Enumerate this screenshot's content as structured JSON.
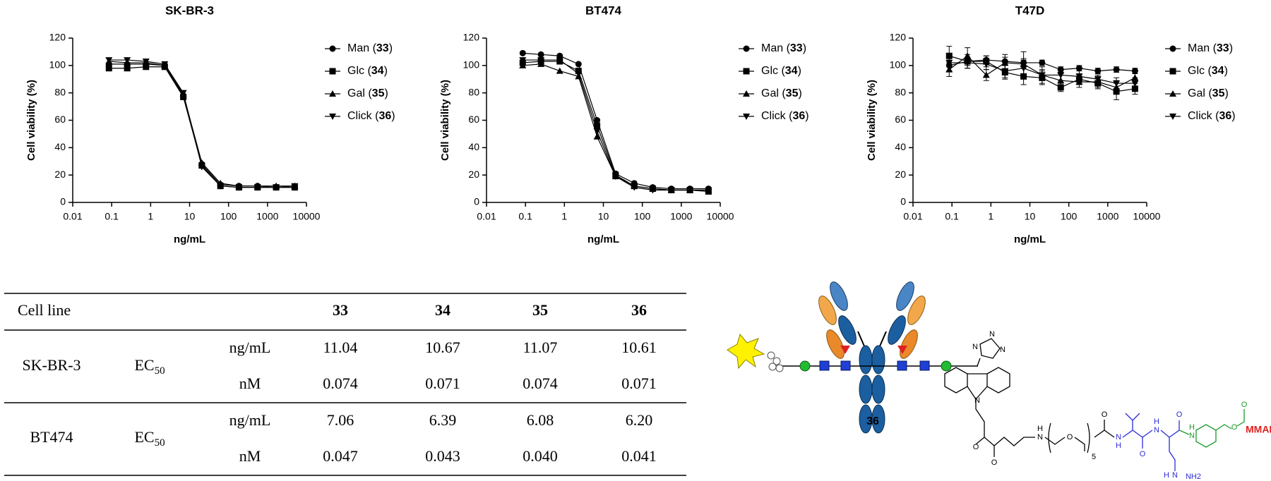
{
  "chart_data": [
    {
      "type": "line",
      "title": "SK-BR-3",
      "x_label": "ng/mL",
      "y_label": "Cell viability (%)",
      "log_x": true,
      "x": [
        0.085,
        0.25,
        0.76,
        2.3,
        6.9,
        20.6,
        62,
        185,
        556,
        1667,
        5000
      ],
      "xlim": [
        0.01,
        10000
      ],
      "xticks": [
        0.01,
        0.1,
        1,
        10,
        100,
        1000,
        10000
      ],
      "ylim": [
        0,
        120
      ],
      "yticks": [
        0,
        20,
        40,
        60,
        80,
        100,
        120
      ],
      "series": [
        {
          "name": "Man (33)",
          "color": "#000000",
          "marker": "circle",
          "values": [
            101,
            101,
            101,
            100,
            78,
            28,
            13,
            12,
            12,
            11,
            11
          ]
        },
        {
          "name": "Glc (34)",
          "color": "#000000",
          "marker": "square",
          "values": [
            98,
            98,
            99,
            99,
            77,
            27,
            12,
            11,
            11,
            11,
            11
          ]
        },
        {
          "name": "Gal (35)",
          "color": "#000000",
          "marker": "triangle",
          "values": [
            103,
            102,
            102,
            100,
            79,
            29,
            14,
            12,
            12,
            12,
            12
          ]
        },
        {
          "name": "Click (36)",
          "color": "#000000",
          "marker": "triangle-down",
          "values": [
            104,
            104,
            103,
            101,
            80,
            26,
            12,
            11,
            11,
            11,
            12
          ]
        }
      ]
    },
    {
      "type": "line",
      "title": "BT474",
      "x_label": "ng/mL",
      "y_label": "Cell viability (%)",
      "log_x": true,
      "x": [
        0.085,
        0.25,
        0.76,
        2.3,
        6.9,
        20.6,
        62,
        185,
        556,
        1667,
        5000
      ],
      "xlim": [
        0.01,
        10000
      ],
      "xticks": [
        0.01,
        0.1,
        1,
        10,
        100,
        1000,
        10000
      ],
      "ylim": [
        0,
        120
      ],
      "yticks": [
        0,
        20,
        40,
        60,
        80,
        100,
        120
      ],
      "series": [
        {
          "name": "Man (33)",
          "color": "#000000",
          "marker": "circle",
          "values": [
            109,
            108,
            107,
            101,
            60,
            21,
            14,
            11,
            10,
            10,
            10
          ]
        },
        {
          "name": "Glc (34)",
          "color": "#000000",
          "marker": "square",
          "values": [
            102,
            103,
            103,
            96,
            56,
            20,
            12,
            10,
            9,
            9,
            8
          ]
        },
        {
          "name": "Gal (35)",
          "color": "#000000",
          "marker": "triangle",
          "values": [
            100,
            101,
            96,
            92,
            48,
            19,
            12,
            10,
            9,
            9,
            9
          ]
        },
        {
          "name": "Click (36)",
          "color": "#000000",
          "marker": "triangle-down",
          "values": [
            104,
            104,
            104,
            94,
            52,
            19,
            11,
            9,
            9,
            9,
            9
          ]
        }
      ]
    },
    {
      "type": "line",
      "title": "T47D",
      "x_label": "ng/mL",
      "y_label": "Cell viability (%)",
      "log_x": true,
      "x": [
        0.085,
        0.25,
        0.76,
        2.3,
        6.9,
        20.6,
        62,
        185,
        556,
        1667,
        5000
      ],
      "xlim": [
        0.01,
        10000
      ],
      "xticks": [
        0.01,
        0.1,
        1,
        10,
        100,
        1000,
        10000
      ],
      "ylim": [
        0,
        120
      ],
      "yticks": [
        0,
        20,
        40,
        60,
        80,
        100,
        120
      ],
      "series": [
        {
          "name": "Man (33)",
          "color": "#000000",
          "marker": "circle",
          "values": [
            100,
            103,
            104,
            103,
            102,
            102,
            97,
            98,
            96,
            97,
            96
          ],
          "errors": [
            4,
            3,
            3,
            3,
            3,
            2,
            2,
            2,
            2,
            2,
            2
          ]
        },
        {
          "name": "Glc (34)",
          "color": "#000000",
          "marker": "square",
          "values": [
            107,
            103,
            103,
            95,
            92,
            91,
            84,
            90,
            87,
            81,
            83
          ],
          "errors": [
            7,
            5,
            4,
            5,
            6,
            5,
            3,
            4,
            4,
            6,
            4
          ]
        },
        {
          "name": "Gal (35)",
          "color": "#000000",
          "marker": "triangle",
          "values": [
            97,
            107,
            93,
            102,
            101,
            93,
            89,
            88,
            88,
            84,
            91
          ],
          "errors": [
            5,
            6,
            4,
            6,
            9,
            6,
            5,
            4,
            4,
            5,
            3
          ]
        },
        {
          "name": "Click (36)",
          "color": "#000000",
          "marker": "triangle-down",
          "values": [
            102,
            102,
            101,
            96,
            98,
            93,
            93,
            92,
            90,
            87,
            87
          ],
          "errors": [
            6,
            4,
            4,
            5,
            6,
            4,
            4,
            5,
            3,
            4,
            4
          ]
        }
      ]
    }
  ],
  "table": {
    "header": [
      "Cell line",
      "33",
      "34",
      "35",
      "36"
    ],
    "rows": [
      {
        "cell_line": "SK-BR-3",
        "metric": "EC",
        "metric_sub": "50",
        "units": [
          "ng/mL",
          "nM"
        ],
        "values": [
          [
            "11.04",
            "10.67",
            "11.07",
            "10.61"
          ],
          [
            "0.074",
            "0.071",
            "0.074",
            "0.071"
          ]
        ]
      },
      {
        "cell_line": "BT474",
        "metric": "EC",
        "metric_sub": "50",
        "units": [
          "ng/mL",
          "nM"
        ],
        "values": [
          [
            "7.06",
            "6.39",
            "6.08",
            "6.20"
          ],
          [
            "0.047",
            "0.043",
            "0.040",
            "0.041"
          ]
        ]
      }
    ]
  },
  "diagram": {
    "compound": "36",
    "payload": "MMAE",
    "peg_repeat": "5",
    "atoms": [
      "N",
      "N",
      "N",
      "N",
      "O",
      "O",
      "N",
      "H",
      "O",
      "O",
      "N",
      "H",
      "O",
      "N",
      "H",
      "O",
      "N",
      "H",
      "O",
      "O",
      "N",
      "H",
      "NH2"
    ]
  }
}
